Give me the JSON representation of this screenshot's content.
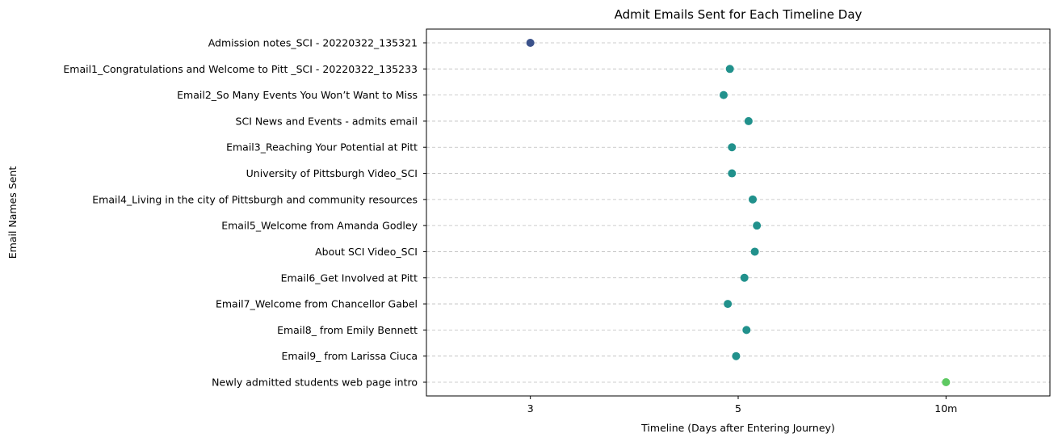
{
  "chart_data": {
    "type": "scatter",
    "title": "Admit Emails Sent for Each Timeline Day",
    "xlabel": "Timeline (Days after Entering Journey)",
    "ylabel": "Email Names Sent",
    "x_ticks": [
      {
        "value": 0,
        "label": "3"
      },
      {
        "value": 1,
        "label": "5"
      },
      {
        "value": 2,
        "label": "10m"
      }
    ],
    "xlim": [
      -0.5,
      2.5
    ],
    "grid": "horizontal dashed",
    "categories": [
      "Admission notes_SCI - 20220322_135321",
      "Email1_Congratulations and Welcome to Pitt _SCI - 20220322_135233",
      "Email2_So Many Events You Won’t Want to Miss",
      "SCI News and Events - admits email",
      "Email3_Reaching Your Potential at Pitt",
      "University of Pittsburgh Video_SCI",
      "Email4_Living in the city of Pittsburgh and community resources",
      "Email5_Welcome from Amanda Godley",
      "About SCI Video_SCI",
      "Email6_Get Involved at Pitt",
      "Email7_Welcome from Chancellor Gabel",
      "Email8_ from Emily Bennett",
      "Email9_ from Larissa Ciuca",
      "Newly admitted students web page intro"
    ],
    "values": [
      0.0,
      0.96,
      0.93,
      1.05,
      0.97,
      0.97,
      1.07,
      1.09,
      1.08,
      1.03,
      0.95,
      1.04,
      0.99,
      2.0
    ],
    "colors": [
      "#3b528b",
      "#21918c",
      "#21918c",
      "#21918c",
      "#21918c",
      "#21918c",
      "#21918c",
      "#21918c",
      "#21918c",
      "#21918c",
      "#21918c",
      "#21918c",
      "#21918c",
      "#5ec962"
    ]
  }
}
